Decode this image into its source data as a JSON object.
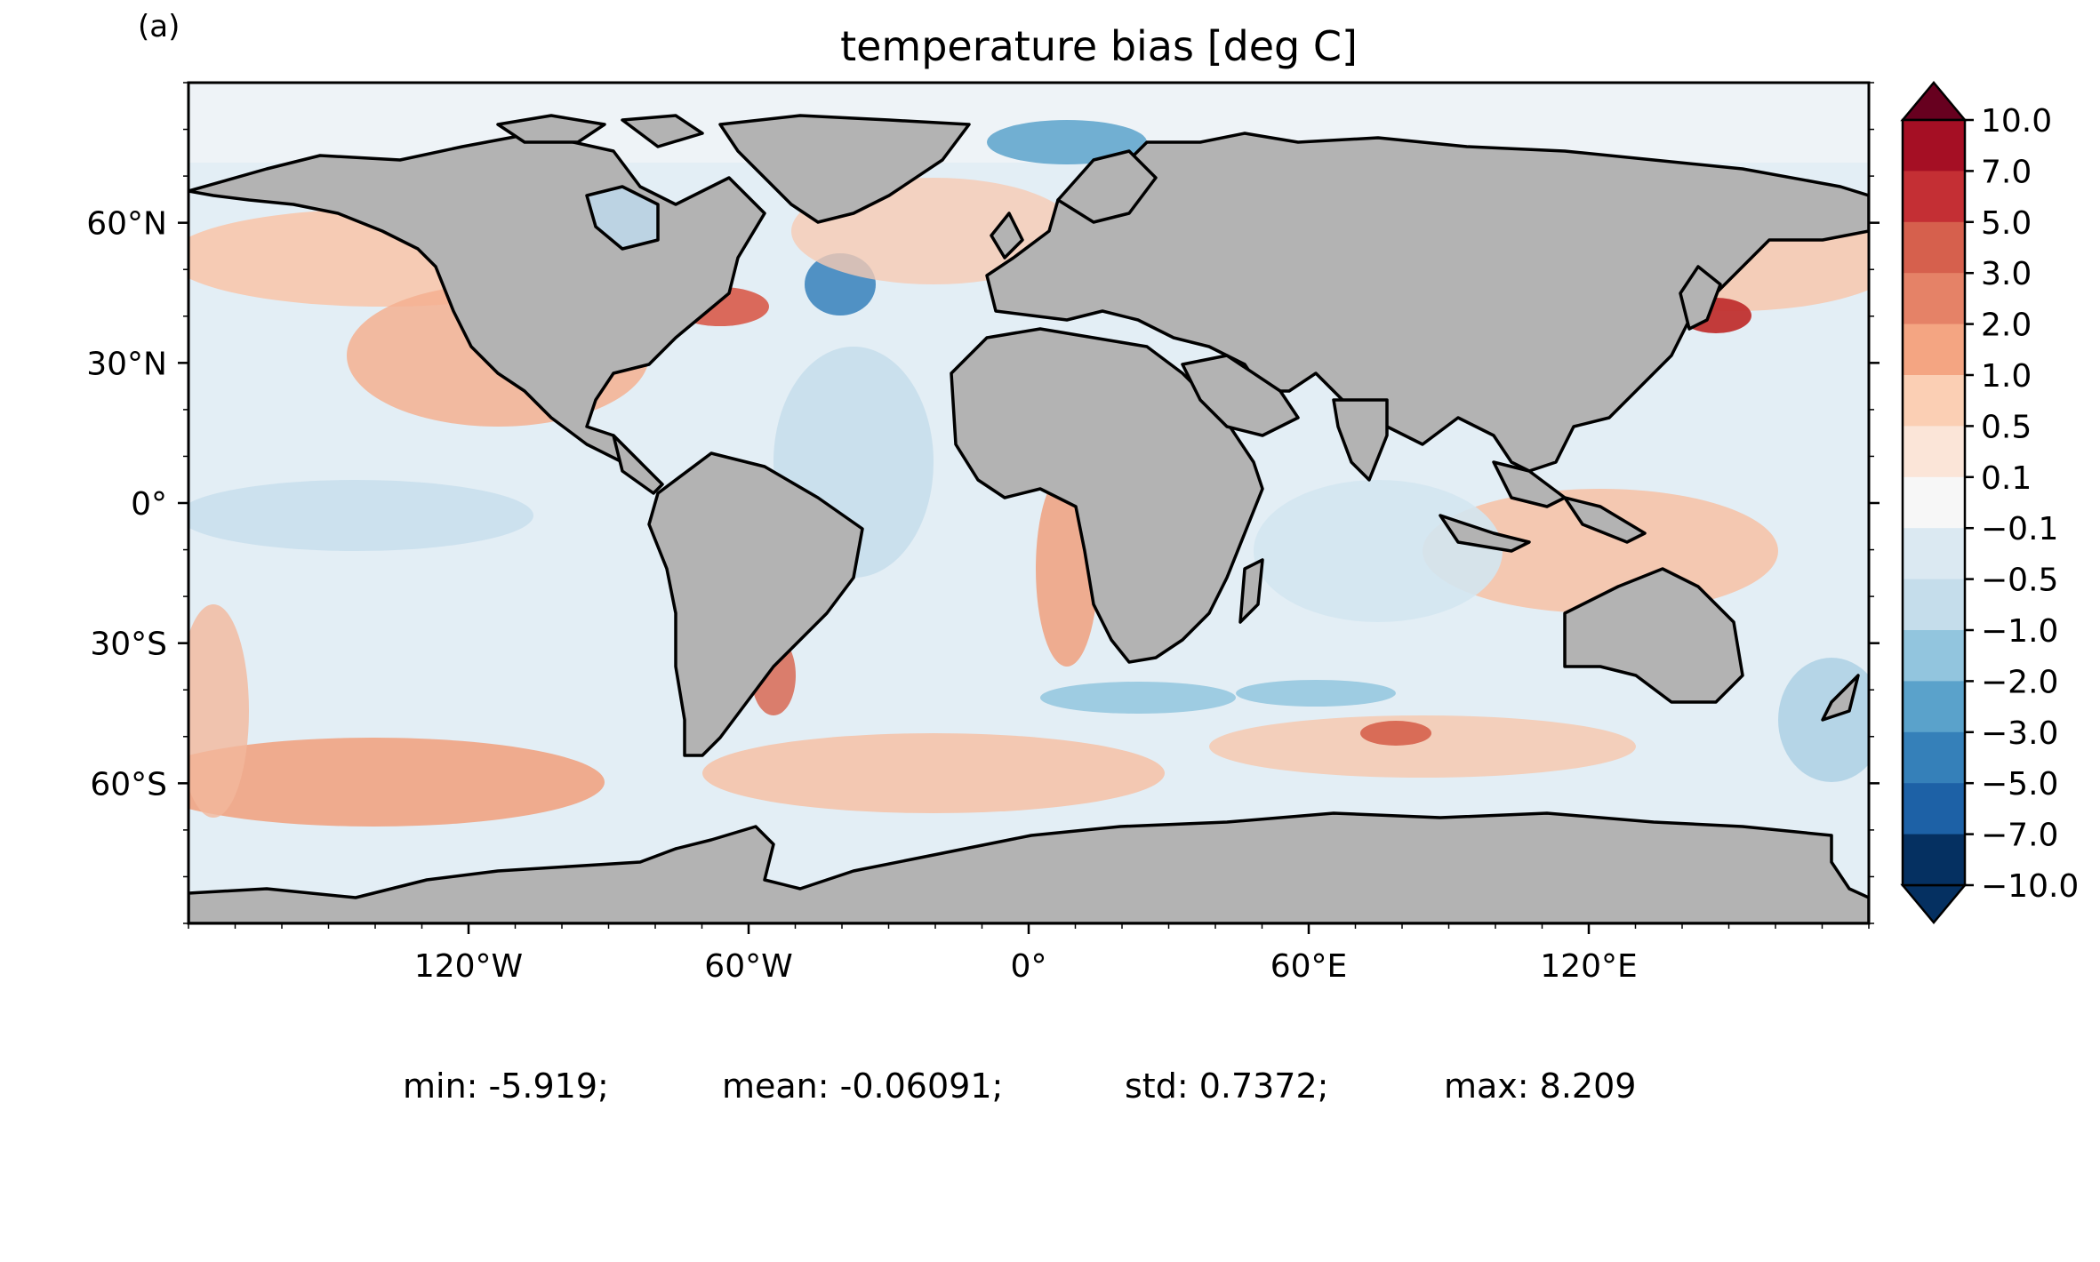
{
  "panel_label": "(a)",
  "title": "temperature bias [deg C]",
  "map": {
    "projection": "PlateCarree",
    "lon_range": [
      -180,
      180
    ],
    "lat_range": [
      -90,
      90
    ],
    "land_color": "#b3b3b3",
    "coastline_color": "#000000",
    "colormap": "RdBu_r",
    "x_ticks": [
      "120°W",
      "60°W",
      "0°",
      "60°E",
      "120°E"
    ],
    "y_ticks": [
      "60°N",
      "30°N",
      "0°",
      "30°S",
      "60°S"
    ]
  },
  "colorbar": {
    "levels": [
      "10.0",
      "7.0",
      "5.0",
      "3.0",
      "2.0",
      "1.0",
      "0.5",
      "0.1",
      "−0.1",
      "−0.5",
      "−1.0",
      "−2.0",
      "−3.0",
      "−5.0",
      "−7.0",
      "−10.0"
    ],
    "colors": [
      "#67001f",
      "#a50f24",
      "#c42f34",
      "#d6604d",
      "#e58267",
      "#f4a582",
      "#fbcfb4",
      "#fbe5d8",
      "#f7f7f7",
      "#dbe9f2",
      "#c5ddeb",
      "#92c5de",
      "#5aa2cb",
      "#3580b9",
      "#1d61a6",
      "#053061"
    ],
    "extend": "both"
  },
  "stats": {
    "min": "min: -5.919;",
    "mean": "mean: -0.06091;",
    "std": "std: 0.7372;",
    "max": "max: 8.209"
  }
}
